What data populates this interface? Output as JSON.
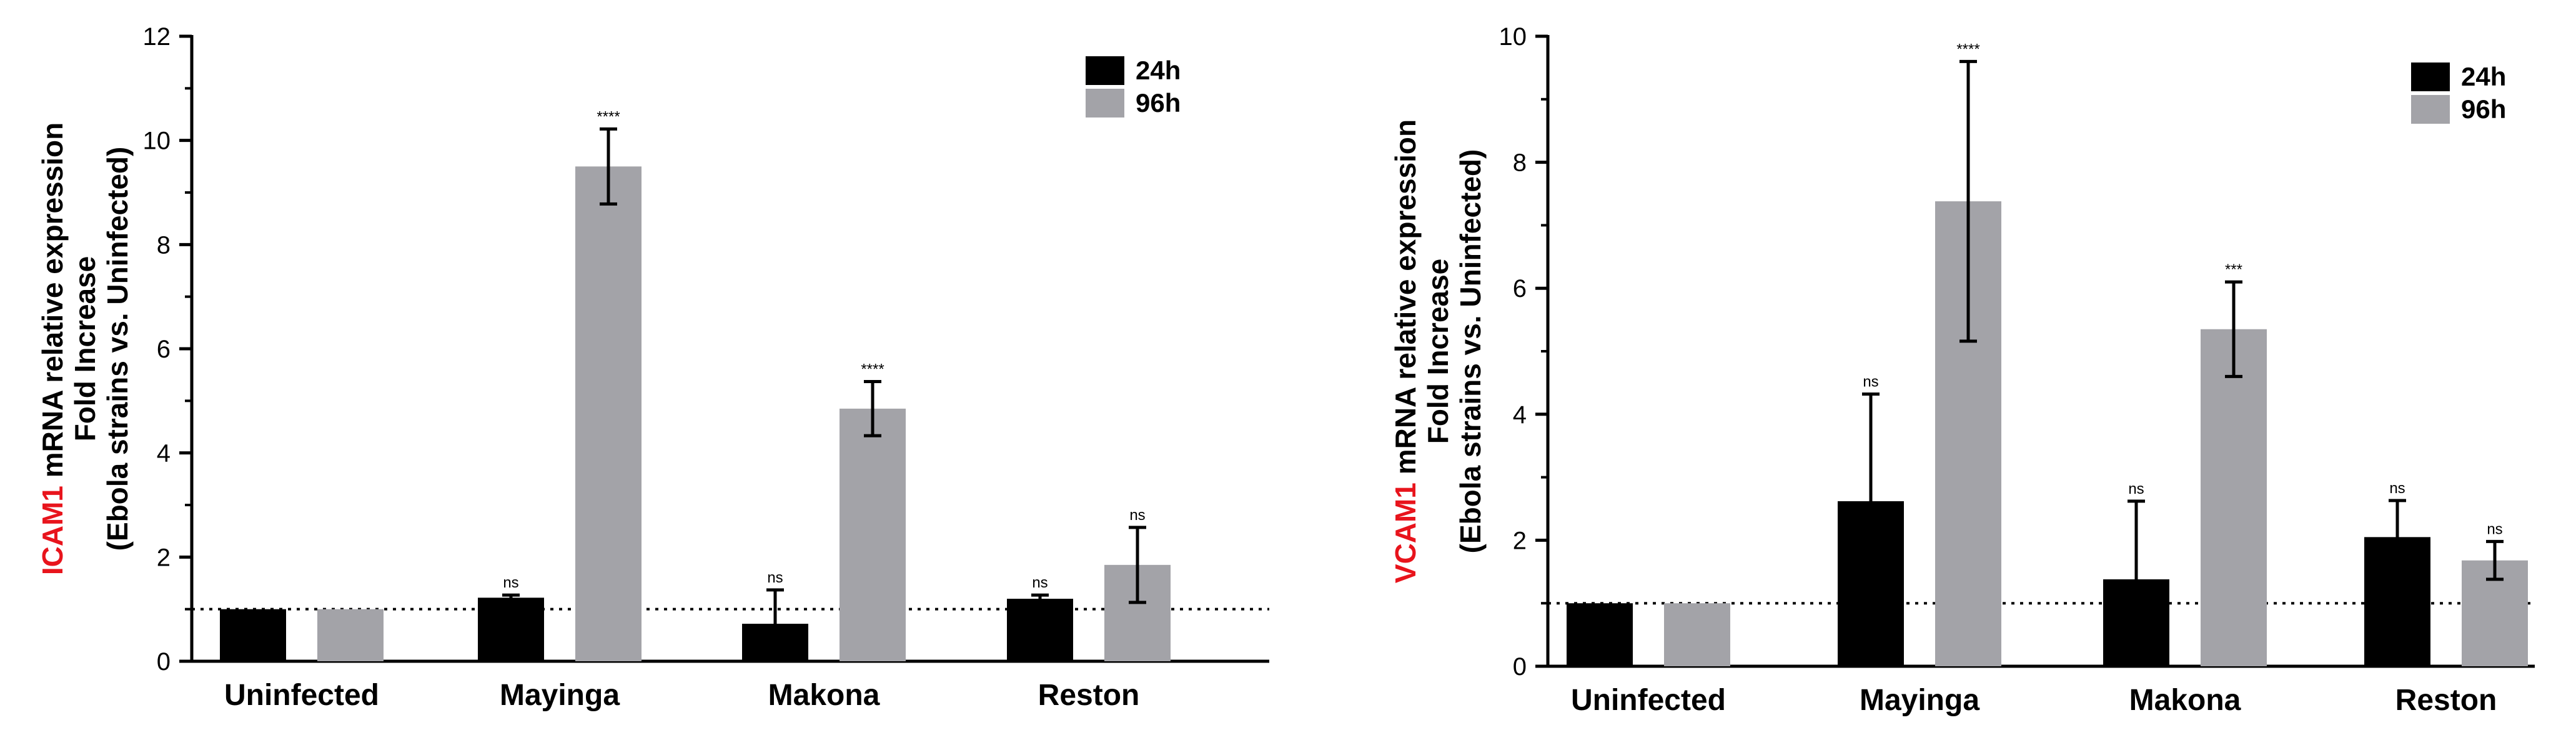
{
  "chart_data": [
    {
      "type": "bar",
      "ylabel_gene": "ICAM1",
      "ylabel_line1": " mRNA relative expression",
      "ylabel_line2": "Fold Increase",
      "ylabel_line3": "(Ebola strains vs. Uninfected)",
      "ylim": [
        0,
        12
      ],
      "yticks": [
        0,
        2,
        4,
        6,
        8,
        10,
        12
      ],
      "categories": [
        "Uninfected",
        "Mayinga",
        "Makona",
        "Reston"
      ],
      "reference_line": 1,
      "legend_position": "top-right",
      "series": [
        {
          "name": "24h",
          "color": "#000000",
          "values": [
            1.0,
            1.22,
            0.72,
            1.2
          ],
          "error": [
            0,
            0.05,
            0.65,
            0.07
          ],
          "significance": [
            "",
            "ns",
            "ns",
            "ns"
          ]
        },
        {
          "name": "96h",
          "color": "#a3a3a8",
          "values": [
            1.0,
            9.5,
            4.85,
            1.85
          ],
          "error": [
            0,
            0.72,
            0.52,
            0.72
          ],
          "significance": [
            "",
            "****",
            "****",
            "ns"
          ]
        }
      ]
    },
    {
      "type": "bar",
      "ylabel_gene": "VCAM1",
      "ylabel_line1": " mRNA relative expression",
      "ylabel_line2": "Fold Increase",
      "ylabel_line3": "(Ebola strains vs. Uninfected)",
      "ylim": [
        0,
        10
      ],
      "yticks": [
        0,
        2,
        4,
        6,
        8,
        10
      ],
      "categories": [
        "Uninfected",
        "Mayinga",
        "Makona",
        "Reston"
      ],
      "reference_line": 1,
      "legend_position": "top-right",
      "series": [
        {
          "name": "24h",
          "color": "#000000",
          "values": [
            1.0,
            2.62,
            1.38,
            2.05
          ],
          "error": [
            0,
            1.7,
            1.24,
            0.58
          ],
          "significance": [
            "",
            "ns",
            "ns",
            "ns"
          ]
        },
        {
          "name": "96h",
          "color": "#a3a3a8",
          "values": [
            1.0,
            7.38,
            5.35,
            1.68
          ],
          "error": [
            0,
            2.22,
            0.75,
            0.3
          ],
          "significance": [
            "",
            "****",
            "***",
            "ns"
          ]
        }
      ]
    }
  ]
}
